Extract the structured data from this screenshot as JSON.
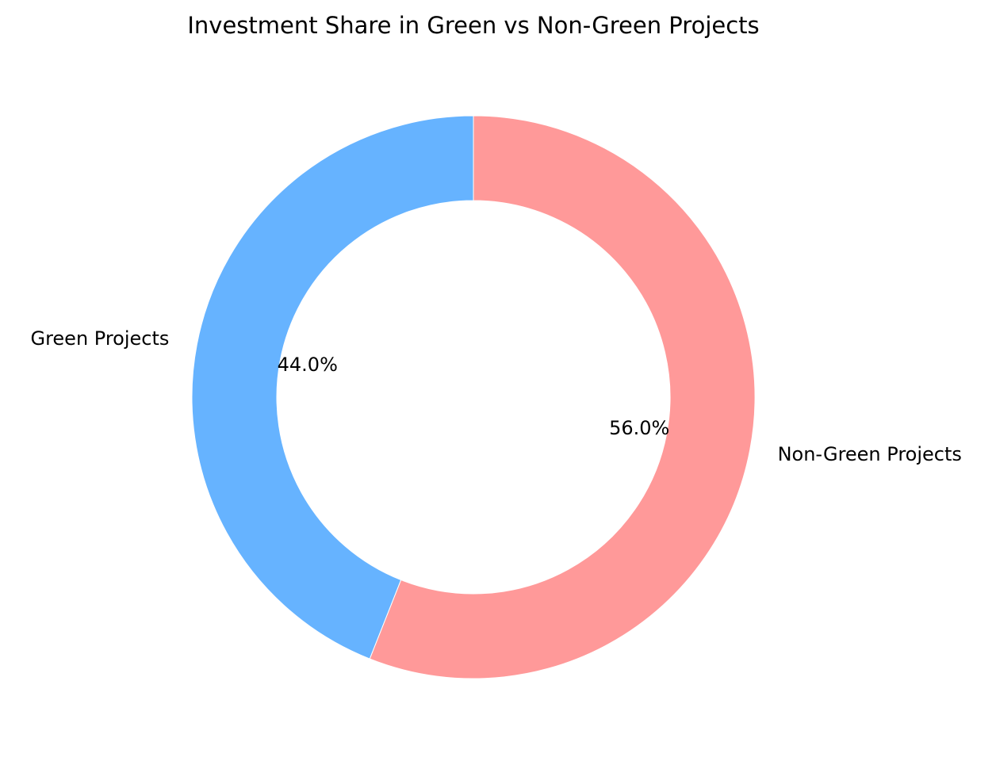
{
  "chart_data": {
    "type": "pie",
    "donut": true,
    "title": "Investment Share in Green vs Non-Green Projects",
    "start_angle_deg": 90,
    "direction": "counterclockwise",
    "slices": [
      {
        "label": "Green Projects",
        "value": 44.0,
        "percent_label": "44.0%",
        "color": "#66b3ff"
      },
      {
        "label": "Non-Green Projects",
        "value": 56.0,
        "percent_label": "56.0%",
        "color": "#ff9999"
      }
    ],
    "legend": "none"
  }
}
